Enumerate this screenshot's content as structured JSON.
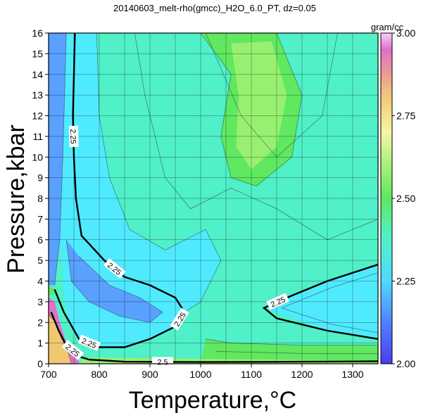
{
  "chart_data": {
    "type": "heatmap",
    "title": "20140603_melt-rho(gmcc)_H2O_6.0_PT, dz=0.05",
    "xlabel": "Temperature,°C",
    "ylabel": "Pressure,kbar",
    "xlim": [
      700,
      1350
    ],
    "ylim": [
      0,
      16
    ],
    "x_ticks": [
      700,
      800,
      900,
      1000,
      1100,
      1200,
      1300
    ],
    "y_ticks": [
      0,
      1,
      2,
      3,
      4,
      5,
      6,
      7,
      8,
      9,
      10,
      11,
      12,
      13,
      14,
      15,
      16
    ],
    "grid": true,
    "colorbar": {
      "unit": "gram/cc",
      "range": [
        2.0,
        3.0
      ],
      "ticks": [
        2.0,
        2.25,
        2.5,
        2.75,
        3.0
      ],
      "tick_labels": [
        "2.00",
        "2.25",
        "2.50",
        "2.75",
        "3.00"
      ],
      "colors": [
        "#5050f5",
        "#5aa0ff",
        "#50eaff",
        "#50f0c8",
        "#5fe860",
        "#98f070",
        "#f4f4a0",
        "#f0c870",
        "#e8a0a0",
        "#e070c8",
        "#f8c8ff"
      ]
    },
    "contour_interval": 0.05,
    "labeled_contours": [
      {
        "value": 2.25,
        "label": "2.25",
        "points": [
          [
            752,
            16
          ],
          [
            750,
            14
          ],
          [
            748,
            12
          ],
          [
            750,
            10
          ],
          [
            754,
            8
          ],
          [
            765,
            6.2
          ],
          [
            810,
            5
          ],
          [
            850,
            4.2
          ],
          [
            900,
            3.8
          ],
          [
            950,
            3.2
          ],
          [
            968,
            2.5
          ],
          [
            950,
            1.8
          ],
          [
            900,
            1.2
          ],
          [
            850,
            0.8
          ],
          [
            800,
            0.8
          ],
          [
            760,
            1.2
          ],
          [
            730,
            2.5
          ],
          [
            712,
            3.6
          ]
        ]
      },
      {
        "value": 2.25,
        "label": "2.25",
        "points": [
          [
            1350,
            4.8
          ],
          [
            1250,
            4.0
          ],
          [
            1180,
            3.3
          ],
          [
            1125,
            2.7
          ],
          [
            1150,
            2.2
          ],
          [
            1250,
            1.6
          ],
          [
            1350,
            1.2
          ]
        ]
      },
      {
        "value": 2.5,
        "label": "2.5",
        "points": [
          [
            760,
            0.35
          ],
          [
            780,
            0.2
          ],
          [
            850,
            0.1
          ],
          [
            1000,
            0.08
          ],
          [
            1200,
            0.1
          ],
          [
            1350,
            0.12
          ]
        ]
      },
      {
        "value": 2.25,
        "label": "2.25",
        "points": [
          [
            705,
            2.5
          ],
          [
            720,
            1.6
          ],
          [
            735,
            0.9
          ],
          [
            760,
            0.4
          ]
        ]
      }
    ],
    "field_samples": [
      {
        "T": 710,
        "P": 14,
        "rho": 2.12
      },
      {
        "T": 740,
        "P": 8,
        "rho": 2.22
      },
      {
        "T": 820,
        "P": 2.2,
        "rho": 2.2
      },
      {
        "T": 900,
        "P": 10,
        "rho": 2.33
      },
      {
        "T": 1000,
        "P": 3,
        "rho": 2.28
      },
      {
        "T": 1100,
        "P": 11,
        "rho": 2.42
      },
      {
        "T": 1300,
        "P": 2.7,
        "rho": 2.2
      },
      {
        "T": 1200,
        "P": 6,
        "rho": 2.35
      },
      {
        "T": 1050,
        "P": 0.4,
        "rho": 2.45
      },
      {
        "T": 705,
        "P": 1.5,
        "rho": 2.8
      }
    ]
  }
}
